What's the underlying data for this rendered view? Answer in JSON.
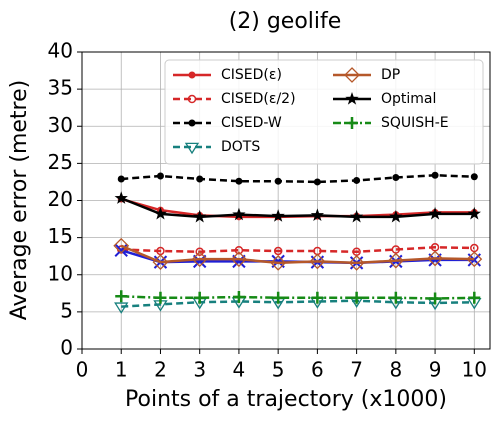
{
  "chart_data": {
    "type": "line",
    "title": "(2) geolife",
    "xlabel": "Points of a trajectory (x1000)",
    "ylabel": "Average error (metre)",
    "x": [
      1,
      2,
      3,
      4,
      5,
      6,
      7,
      8,
      9,
      10
    ],
    "xlim": [
      0,
      10.4
    ],
    "xticks": [
      0,
      1,
      2,
      3,
      4,
      5,
      6,
      7,
      8,
      9,
      10
    ],
    "ylim": [
      0,
      40
    ],
    "yticks": [
      0,
      5,
      10,
      15,
      20,
      25,
      30,
      35,
      40
    ],
    "grid": true,
    "legend": "upper right",
    "series": [
      {
        "name": "CISED(ε)",
        "color": "#d62728",
        "linestyle": "solid",
        "marker": "circle",
        "values": [
          20.2,
          18.7,
          18.0,
          17.8,
          17.8,
          17.9,
          17.9,
          18.1,
          18.4,
          18.4
        ]
      },
      {
        "name": "CISED(ε/2)",
        "color": "#d62728",
        "linestyle": "dashed",
        "marker": "circle-open",
        "values": [
          13.4,
          13.2,
          13.1,
          13.3,
          13.2,
          13.2,
          13.1,
          13.4,
          13.7,
          13.6
        ]
      },
      {
        "name": "CISED-W",
        "color": "#000000",
        "linestyle": "dashed",
        "marker": "circle",
        "values": [
          22.9,
          23.3,
          22.9,
          22.6,
          22.6,
          22.5,
          22.7,
          23.1,
          23.4,
          23.2
        ]
      },
      {
        "name": "DOTS",
        "color": "#17807e",
        "linestyle": "dashed",
        "marker": "triangle-down",
        "values": [
          5.7,
          6.0,
          6.3,
          6.4,
          6.3,
          6.4,
          6.5,
          6.3,
          6.2,
          6.3
        ]
      },
      {
        "color": "#1f1fd6",
        "linestyle": "solid",
        "marker": "x",
        "values": [
          13.3,
          11.7,
          11.8,
          11.8,
          11.8,
          11.7,
          11.6,
          11.8,
          12.0,
          12.0
        ]
      },
      {
        "name": "DP",
        "color": "#b5582a",
        "linestyle": "solid",
        "marker": "diamond",
        "values": [
          13.9,
          11.7,
          12.1,
          12.1,
          11.6,
          11.8,
          11.6,
          11.9,
          12.2,
          12.1
        ]
      },
      {
        "name": "Optimal",
        "color": "#000000",
        "linestyle": "solid",
        "marker": "star",
        "values": [
          20.3,
          18.2,
          17.8,
          18.1,
          17.9,
          18.0,
          17.8,
          17.8,
          18.2,
          18.2
        ]
      },
      {
        "name": "SQUISH-E",
        "color": "#168a16",
        "linestyle": "dashdot",
        "marker": "plus",
        "values": [
          7.1,
          6.9,
          6.9,
          7.0,
          6.9,
          6.9,
          6.9,
          6.9,
          6.8,
          6.9
        ]
      }
    ]
  }
}
